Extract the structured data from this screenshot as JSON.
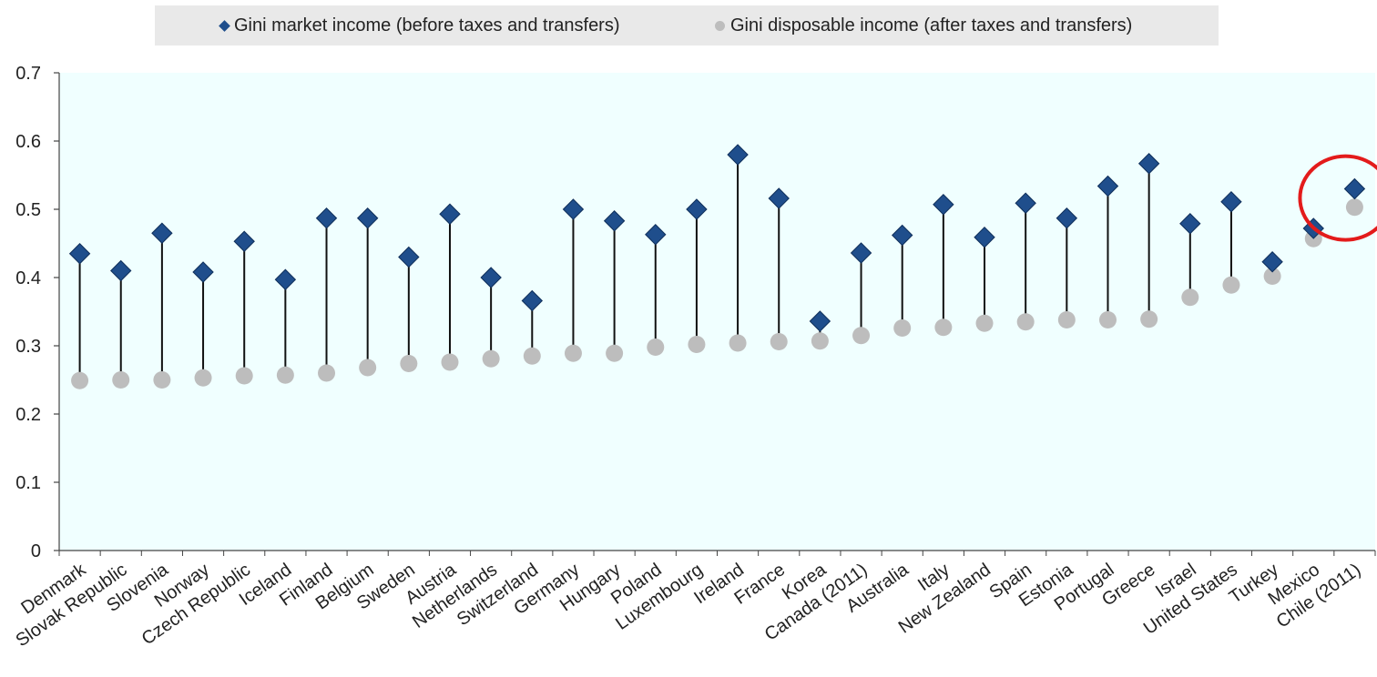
{
  "legend": {
    "market_label": "Gini market income (before taxes and transfers)",
    "disposable_label": "Gini disposable income (after taxes and transfers)"
  },
  "colors": {
    "market": "#1f4e8c",
    "disposable": "#bdbdbd",
    "plot_background": "#f0ffff",
    "highlight_circle": "#e31b1b"
  },
  "chart_data": {
    "type": "scatter",
    "title": "",
    "xlabel": "",
    "ylabel": "",
    "ylim": [
      0,
      0.7
    ],
    "yticks": [
      0,
      0.1,
      0.2,
      0.3,
      0.4,
      0.5,
      0.6,
      0.7
    ],
    "ytick_labels": [
      "0",
      "0.1",
      "0.2",
      "0.3",
      "0.4",
      "0.5",
      "0.6",
      "0.7"
    ],
    "grid": false,
    "legend_position": "top",
    "highlighted_category": "Chile (2011)",
    "categories": [
      "Denmark",
      "Slovak Republic",
      "Slovenia",
      "Norway",
      "Czech Republic",
      "Iceland",
      "Finland",
      "Belgium",
      "Sweden",
      "Austria",
      "Netherlands",
      "Switzerland",
      "Germany",
      "Hungary",
      "Poland",
      "Luxembourg",
      "Ireland",
      "France",
      "Korea",
      "Canada (2011)",
      "Australia",
      "Italy",
      "New Zealand",
      "Spain",
      "Estonia",
      "Portugal",
      "Greece",
      "Israel",
      "United States",
      "Turkey",
      "Mexico",
      "Chile (2011)"
    ],
    "series": [
      {
        "name": "Gini market income (before taxes and transfers)",
        "marker": "diamond",
        "values": [
          0.435,
          0.41,
          0.465,
          0.408,
          0.453,
          0.397,
          0.487,
          0.487,
          0.43,
          0.493,
          0.4,
          0.366,
          0.5,
          0.483,
          0.463,
          0.5,
          0.58,
          0.516,
          0.336,
          0.436,
          0.462,
          0.507,
          0.459,
          0.509,
          0.487,
          0.534,
          0.567,
          0.479,
          0.511,
          0.423,
          0.472,
          0.53
        ]
      },
      {
        "name": "Gini disposable income (after taxes and transfers)",
        "marker": "circle",
        "values": [
          0.249,
          0.25,
          0.25,
          0.253,
          0.256,
          0.257,
          0.26,
          0.268,
          0.274,
          0.276,
          0.281,
          0.285,
          0.289,
          0.289,
          0.298,
          0.302,
          0.304,
          0.306,
          0.307,
          0.315,
          0.326,
          0.327,
          0.333,
          0.335,
          0.338,
          0.338,
          0.339,
          0.371,
          0.389,
          0.402,
          0.457,
          0.503
        ]
      }
    ]
  }
}
